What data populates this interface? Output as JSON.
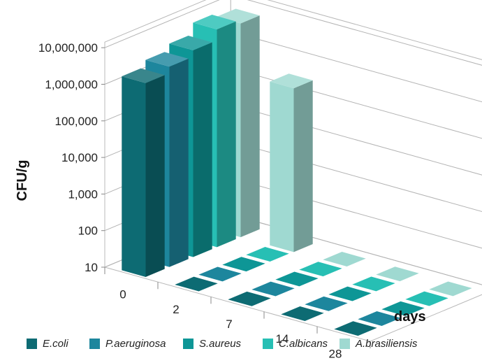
{
  "chart_data": {
    "type": "bar",
    "subtype": "3d-grouped-bar",
    "title": "",
    "xlabel": "days",
    "ylabel": "CFU/g",
    "yscale": "log",
    "ylim": [
      10,
      10000000
    ],
    "y_ticks": [
      "10",
      "100",
      "1,000",
      "10,000",
      "100,000",
      "1,000,000",
      "10,000,000"
    ],
    "categories": [
      "0",
      "2",
      "7",
      "14",
      "28"
    ],
    "grid": true,
    "legend_position": "bottom",
    "series": [
      {
        "name": "E.coli",
        "color": "#0d6b73",
        "values": [
          2000000,
          10,
          10,
          10,
          10
        ]
      },
      {
        "name": "P.aeruginosa",
        "color": "#1d869d",
        "values": [
          3000000,
          10,
          10,
          10,
          10
        ]
      },
      {
        "name": "S.aureus",
        "color": "#0e9696",
        "values": [
          4500000,
          10,
          10,
          10,
          10
        ]
      },
      {
        "name": "C.albicans",
        "color": "#27bfb4",
        "values": [
          9000000,
          10,
          10,
          10,
          10
        ]
      },
      {
        "name": "A.brasiliensis",
        "color": "#9fd9d1",
        "values": [
          7000000,
          300000,
          10,
          10,
          10
        ]
      }
    ]
  }
}
